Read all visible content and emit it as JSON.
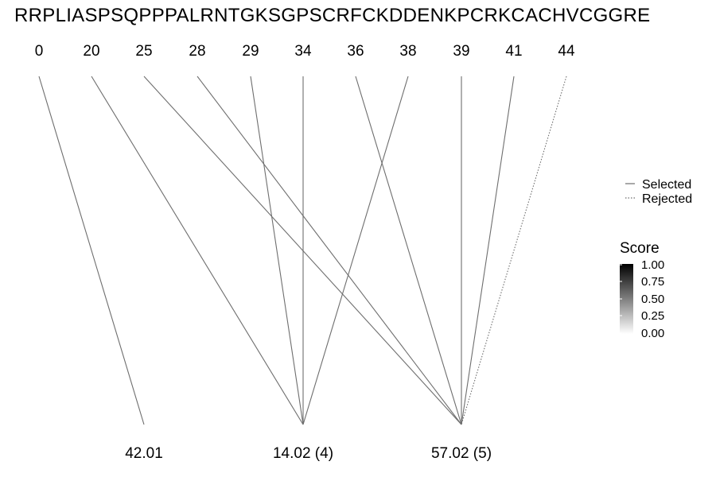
{
  "sequence": "RRPLIASPSQPPPALRNTGKSGPSCRFCKDDENKPCRKCACHVCGGRE",
  "positions": [
    "0",
    "20",
    "25",
    "28",
    "29",
    "34",
    "36",
    "38",
    "39",
    "41",
    "44"
  ],
  "masses": [
    "42.01",
    "14.02 (4)",
    "57.02 (5)"
  ],
  "connections": [
    {
      "from": 0,
      "to": 0,
      "status": "Selected"
    },
    {
      "from": 1,
      "to": 1,
      "status": "Selected"
    },
    {
      "from": 2,
      "to": 2,
      "status": "Selected"
    },
    {
      "from": 3,
      "to": 2,
      "status": "Selected"
    },
    {
      "from": 4,
      "to": 1,
      "status": "Selected"
    },
    {
      "from": 5,
      "to": 1,
      "status": "Selected"
    },
    {
      "from": 6,
      "to": 2,
      "status": "Selected"
    },
    {
      "from": 7,
      "to": 1,
      "status": "Selected"
    },
    {
      "from": 8,
      "to": 2,
      "status": "Selected"
    },
    {
      "from": 9,
      "to": 2,
      "status": "Selected"
    },
    {
      "from": 10,
      "to": 2,
      "status": "Rejected"
    }
  ],
  "legend": {
    "selected": "Selected",
    "rejected": "Rejected"
  },
  "score": {
    "title": "Score",
    "ticks": [
      "1.00",
      "0.75",
      "0.50",
      "0.25",
      "0.00"
    ]
  },
  "colors": {
    "line": "#6e6e6e",
    "score_high": "#000000",
    "score_low": "#ffffff"
  }
}
